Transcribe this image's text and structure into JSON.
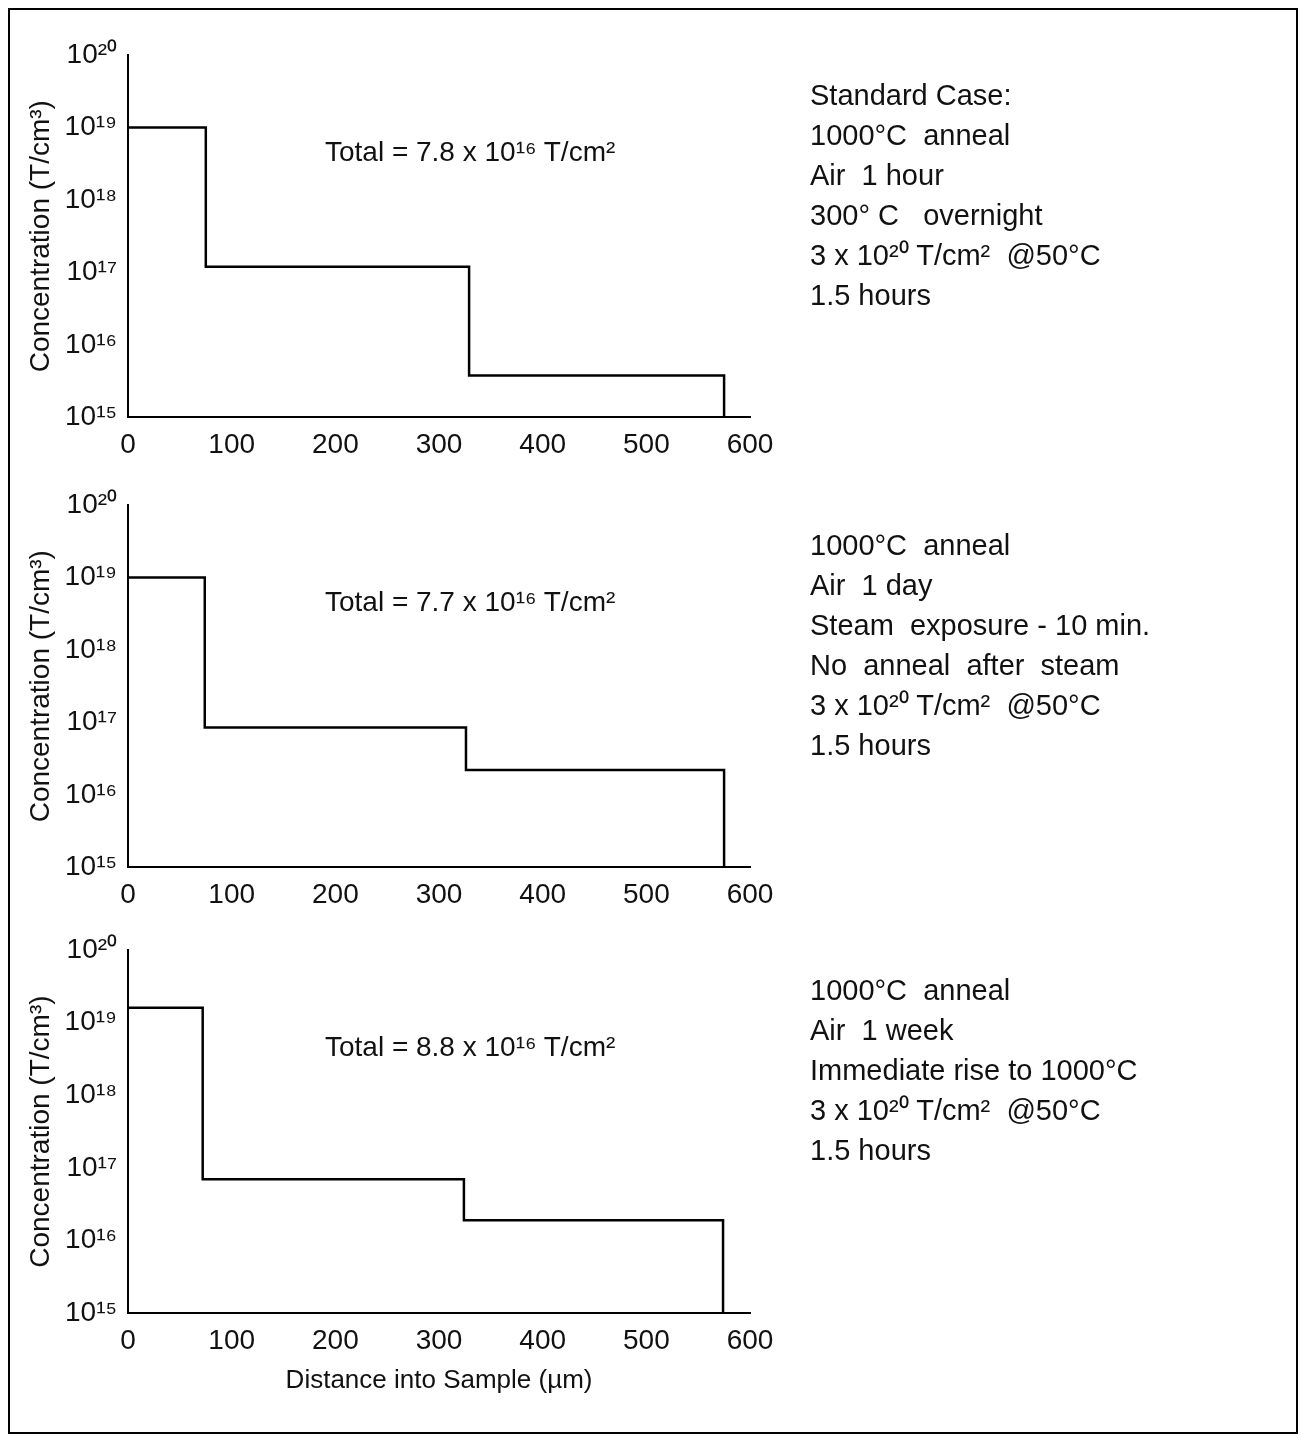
{
  "chart_data": [
    {
      "type": "step",
      "ylabel": "Concentration (T/cm³)",
      "x": [
        0,
        75,
        329,
        575
      ],
      "series": [
        {
          "color": "#000000",
          "values": [
            1e+19,
            1.2e+17,
            3800000000000000.0,
            1000000000000000.0
          ]
        }
      ],
      "log": "y",
      "marker": "none",
      "xlim": [
        0,
        600
      ],
      "xticks": [
        0,
        100,
        200,
        300,
        400,
        500,
        600
      ],
      "ylim": [
        1000000000000000.0,
        1e+20
      ],
      "yticks": [
        {
          "value": 1000000000000000.0,
          "label": "10¹⁵"
        },
        {
          "value": 1e+16,
          "label": "10¹⁶"
        },
        {
          "value": 1e+17,
          "label": "10¹⁷"
        },
        {
          "value": 1e+18,
          "label": "10¹⁸"
        },
        {
          "value": 1e+19,
          "label": "10¹⁹"
        },
        {
          "value": 1e+20,
          "label": "10²⁰"
        }
      ],
      "annotations": [
        "Total = 7.8 x 10¹⁶ T/cm²",
        "Standard Case:",
        "1000°C  anneal",
        "Air  1 hour",
        "300° C   overnight",
        "3 x 10²⁰ T/cm²  @50°C",
        "1.5 hours"
      ]
    },
    {
      "type": "step",
      "ylabel": "Concentration (T/cm³)",
      "x": [
        0,
        74,
        326,
        575
      ],
      "series": [
        {
          "color": "#000000",
          "values": [
            1e+19,
            8.5e+16,
            2.2e+16,
            1000000000000000.0
          ]
        }
      ],
      "log": "y",
      "marker": "none",
      "xlim": [
        0,
        600
      ],
      "xticks": [
        0,
        100,
        200,
        300,
        400,
        500,
        600
      ],
      "ylim": [
        1000000000000000.0,
        1e+20
      ],
      "yticks": [
        {
          "value": 1000000000000000.0,
          "label": "10¹⁵"
        },
        {
          "value": 1e+16,
          "label": "10¹⁶"
        },
        {
          "value": 1e+17,
          "label": "10¹⁷"
        },
        {
          "value": 1e+18,
          "label": "10¹⁸"
        },
        {
          "value": 1e+19,
          "label": "10¹⁹"
        },
        {
          "value": 1e+20,
          "label": "10²⁰"
        }
      ],
      "annotations": [
        "Total = 7.7 x 10¹⁶ T/cm²",
        "1000°C  anneal",
        "Air  1 day",
        "Steam  exposure - 10 min.",
        "No  anneal  after  steam",
        "3 x 10²⁰ T/cm²  @50°C",
        "1.5 hours"
      ]
    },
    {
      "type": "step",
      "xlabel": "Distance into Sample (µm)",
      "ylabel": "Concentration (T/cm³)",
      "x": [
        0,
        72,
        324,
        574
      ],
      "series": [
        {
          "color": "#000000",
          "values": [
            1.6e+19,
            7e+16,
            1.9e+16,
            1000000000000000.0
          ]
        }
      ],
      "log": "y",
      "marker": "none",
      "xlim": [
        0,
        600
      ],
      "xticks": [
        0,
        100,
        200,
        300,
        400,
        500,
        600
      ],
      "ylim": [
        1000000000000000.0,
        1e+20
      ],
      "yticks": [
        {
          "value": 1000000000000000.0,
          "label": "10¹⁵"
        },
        {
          "value": 1e+16,
          "label": "10¹⁶"
        },
        {
          "value": 1e+17,
          "label": "10¹⁷"
        },
        {
          "value": 1e+18,
          "label": "10¹⁸"
        },
        {
          "value": 1e+19,
          "label": "10¹⁹"
        },
        {
          "value": 1e+20,
          "label": "10²⁰"
        }
      ],
      "annotations": [
        "Total = 8.8 x 10¹⁶ T/cm²",
        "1000°C  anneal",
        "Air  1 week",
        "Immediate rise to 1000°C",
        "3 x 10²⁰ T/cm²  @50°C",
        "1.5 hours"
      ]
    }
  ]
}
